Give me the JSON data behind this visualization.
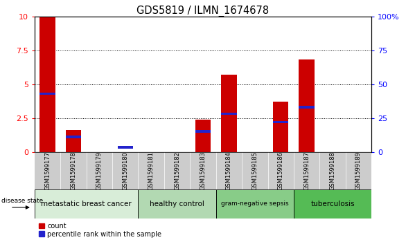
{
  "title": "GDS5819 / ILMN_1674678",
  "samples": [
    "GSM1599177",
    "GSM1599178",
    "GSM1599179",
    "GSM1599180",
    "GSM1599181",
    "GSM1599182",
    "GSM1599183",
    "GSM1599184",
    "GSM1599185",
    "GSM1599186",
    "GSM1599187",
    "GSM1599188",
    "GSM1599189"
  ],
  "red_values": [
    10.0,
    1.6,
    0.0,
    0.0,
    0.0,
    0.0,
    2.4,
    5.7,
    0.0,
    3.7,
    6.8,
    0.0,
    0.0
  ],
  "blue_values": [
    4.3,
    1.1,
    0.0,
    0.35,
    0.0,
    0.0,
    1.5,
    2.8,
    0.0,
    2.2,
    3.3,
    0.0,
    0.0
  ],
  "groups": [
    {
      "label": "metastatic breast cancer",
      "start": 0,
      "end": 4,
      "color": "#d8edd8",
      "text_size": 7.5
    },
    {
      "label": "healthy control",
      "start": 4,
      "end": 7,
      "color": "#b2d9b2",
      "text_size": 7.5
    },
    {
      "label": "gram-negative sepsis",
      "start": 7,
      "end": 10,
      "color": "#88cc88",
      "text_size": 6.5
    },
    {
      "label": "tuberculosis",
      "start": 10,
      "end": 13,
      "color": "#55bb55",
      "text_size": 7.5
    }
  ],
  "ylim_left": [
    0,
    10
  ],
  "ylim_right": [
    0,
    100
  ],
  "yticks_left": [
    0,
    2.5,
    5.0,
    7.5,
    10
  ],
  "yticks_right": [
    0,
    25,
    50,
    75,
    100
  ],
  "ytick_labels_left": [
    "0",
    "2.5",
    "5",
    "7.5",
    "10"
  ],
  "ytick_labels_right": [
    "0",
    "25",
    "50",
    "75",
    "100%"
  ],
  "bar_color_red": "#cc0000",
  "bar_color_blue": "#2222cc",
  "bar_width": 0.6,
  "grid_color": "black",
  "bg_plot": "#ffffff",
  "bg_xtick": "#cccccc",
  "legend_count_label": "count",
  "legend_pct_label": "percentile rank within the sample",
  "disease_state_label": "disease state"
}
